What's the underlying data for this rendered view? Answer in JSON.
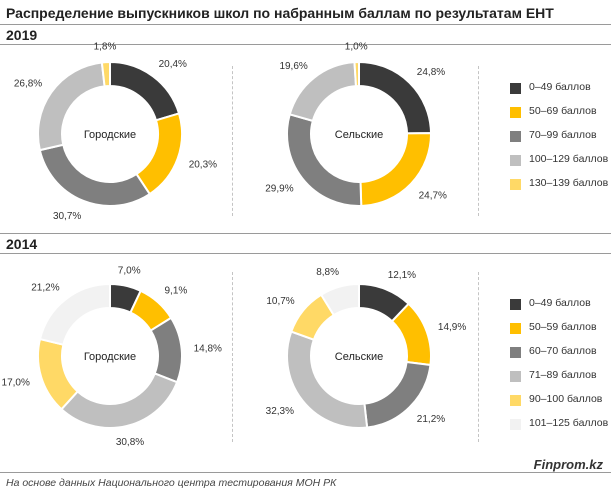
{
  "title": "Распределение выпускников школ по набранным баллам по результатам ЕНТ",
  "source": "На основе данных  Национального  центра тестирования МОН РК",
  "brand": "Finprom.kz",
  "chart_data": [
    {
      "type": "pie",
      "year": "2019",
      "center_label": "Городские",
      "categories": [
        "0–49 баллов",
        "50–69 баллов",
        "70–99 баллов",
        "100–129 баллов",
        "130–139 баллов"
      ],
      "values": [
        20.4,
        20.3,
        30.7,
        26.8,
        1.8
      ],
      "labels": [
        "20,4%",
        "20,3%",
        "30,7%",
        "26,8%",
        "1,8%"
      ],
      "colors": [
        "#3a3a3a",
        "#ffbf00",
        "#7f7f7f",
        "#bfbfbf",
        "#ffd966"
      ]
    },
    {
      "type": "pie",
      "year": "2019",
      "center_label": "Сельские",
      "categories": [
        "0–49 баллов",
        "50–69 баллов",
        "70–99 баллов",
        "100–129 баллов",
        "130–139 баллов"
      ],
      "values": [
        24.8,
        24.7,
        29.9,
        19.6,
        1.0
      ],
      "labels": [
        "24,8%",
        "24,7%",
        "29,9%",
        "19,6%",
        "1,0%"
      ],
      "colors": [
        "#3a3a3a",
        "#ffbf00",
        "#7f7f7f",
        "#bfbfbf",
        "#ffd966"
      ]
    },
    {
      "type": "pie",
      "year": "2014",
      "center_label": "Городские",
      "categories": [
        "0–49 баллов",
        "50–59 баллов",
        "60–70 баллов",
        "71–89 баллов",
        "90–100 баллов",
        "101–125 баллов"
      ],
      "values": [
        7.0,
        9.1,
        14.8,
        30.8,
        17.0,
        21.2
      ],
      "labels": [
        "7,0%",
        "9,1%",
        "14,8%",
        "30,8%",
        "17,0%",
        "21,2%"
      ],
      "colors": [
        "#3a3a3a",
        "#ffbf00",
        "#7f7f7f",
        "#bfbfbf",
        "#ffd966",
        "#f2f2f2"
      ]
    },
    {
      "type": "pie",
      "year": "2014",
      "center_label": "Сельские",
      "categories": [
        "0–49 баллов",
        "50–59 баллов",
        "60–70 баллов",
        "71–89 баллов",
        "90–100 баллов",
        "101–125 баллов"
      ],
      "values": [
        12.1,
        14.9,
        21.2,
        32.3,
        10.7,
        8.8
      ],
      "labels": [
        "12,1%",
        "14,9%",
        "21,2%",
        "32,3%",
        "10,7%",
        "8,8%"
      ],
      "colors": [
        "#3a3a3a",
        "#ffbf00",
        "#7f7f7f",
        "#bfbfbf",
        "#ffd966",
        "#f2f2f2"
      ]
    }
  ],
  "legends": {
    "2019": [
      {
        "label": "0–49 баллов",
        "color": "#3a3a3a"
      },
      {
        "label": "50–69 баллов",
        "color": "#ffbf00"
      },
      {
        "label": "70–99 баллов",
        "color": "#7f7f7f"
      },
      {
        "label": "100–129 баллов",
        "color": "#bfbfbf"
      },
      {
        "label": "130–139 баллов",
        "color": "#ffd966"
      }
    ],
    "2014": [
      {
        "label": "0–49 баллов",
        "color": "#3a3a3a"
      },
      {
        "label": "50–59 баллов",
        "color": "#ffbf00"
      },
      {
        "label": "60–70 баллов",
        "color": "#7f7f7f"
      },
      {
        "label": "71–89 баллов",
        "color": "#bfbfbf"
      },
      {
        "label": "90–100 баллов",
        "color": "#ffd966"
      },
      {
        "label": "101–125 баллов",
        "color": "#f2f2f2"
      }
    ]
  }
}
